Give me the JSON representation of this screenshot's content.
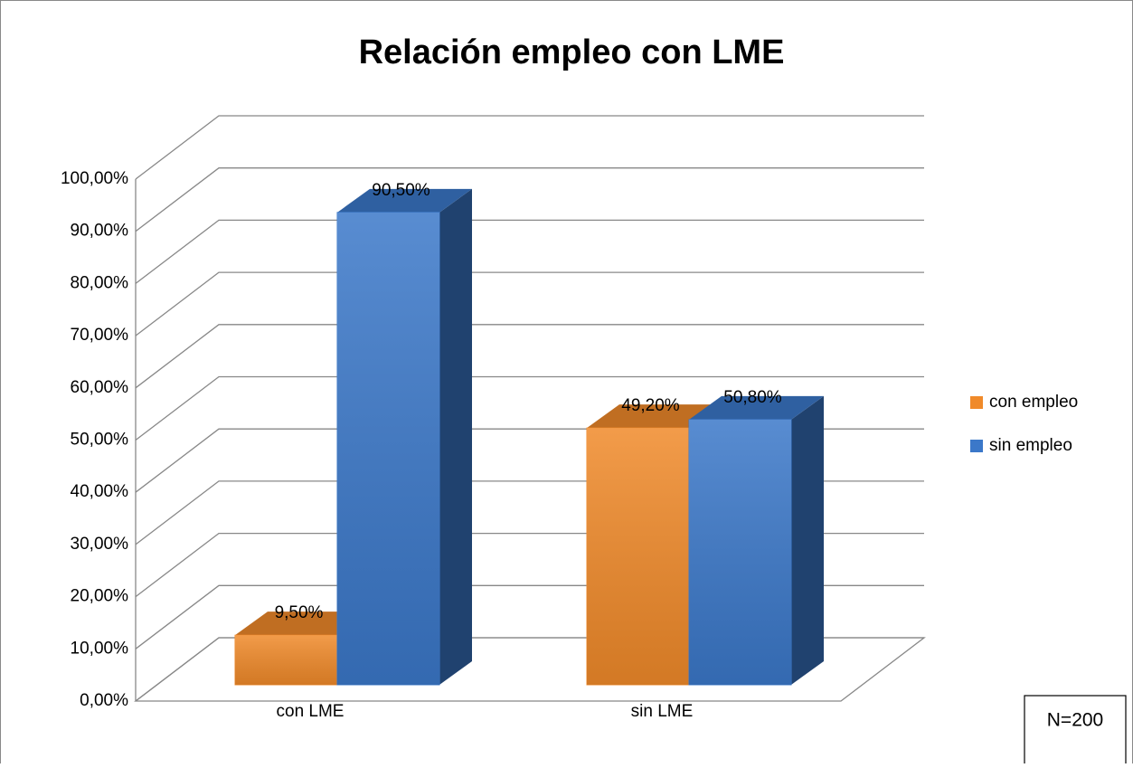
{
  "chart_data": {
    "type": "bar3d",
    "title": "Relación empleo con LME",
    "categories": [
      "con LME",
      "sin LME"
    ],
    "series": [
      {
        "name": "con empleo",
        "color": "#f08a2a",
        "values": [
          9.5,
          49.2
        ],
        "value_labels": [
          "9,50%",
          "49,20%"
        ]
      },
      {
        "name": "sin empleo",
        "color": "#3b78c9",
        "values": [
          90.5,
          50.8
        ],
        "value_labels": [
          "90,50%",
          "50,80%"
        ]
      }
    ],
    "ylim": [
      0,
      100
    ],
    "yticks": [
      {
        "value": 0,
        "label": "0,00%"
      },
      {
        "value": 10,
        "label": "10,00%"
      },
      {
        "value": 20,
        "label": "20,00%"
      },
      {
        "value": 30,
        "label": "30,00%"
      },
      {
        "value": 40,
        "label": "40,00%"
      },
      {
        "value": 50,
        "label": "50,00%"
      },
      {
        "value": 60,
        "label": "60,00%"
      },
      {
        "value": 70,
        "label": "70,00%"
      },
      {
        "value": 80,
        "label": "80,00%"
      },
      {
        "value": 90,
        "label": "90,00%"
      },
      {
        "value": 100,
        "label": "100,00%"
      }
    ],
    "grid": true,
    "legend": "right",
    "annotation": "N=200"
  }
}
